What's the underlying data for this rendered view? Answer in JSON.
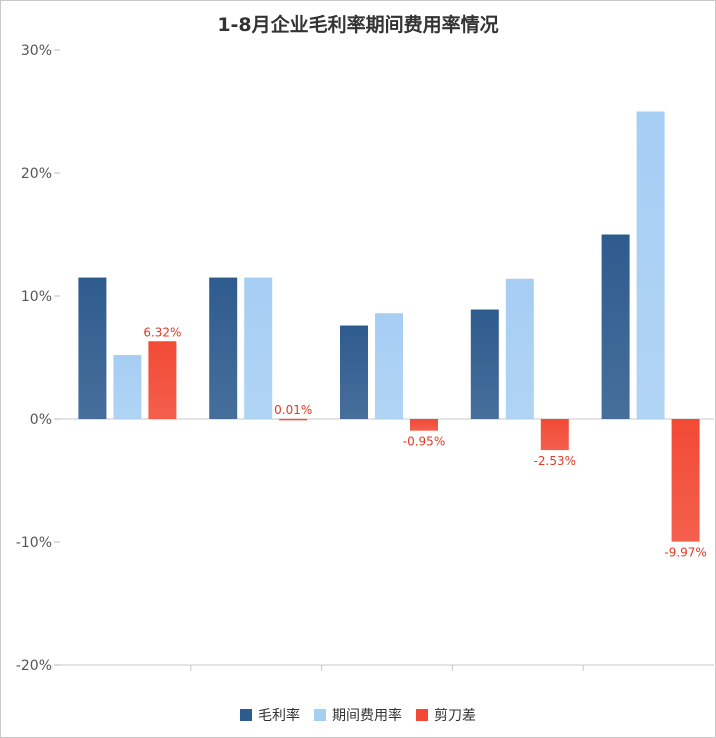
{
  "chart_data": {
    "type": "bar",
    "title": "1-8月企业毛利率期间费用率情况",
    "categories": [
      "",
      "",
      "",
      "",
      ""
    ],
    "series": [
      {
        "name": "毛利率",
        "values": [
          11.5,
          11.5,
          7.6,
          8.9,
          15.0
        ],
        "color": "#2e5b8e",
        "labels": [
          "",
          "",
          "",
          "",
          ""
        ]
      },
      {
        "name": "期间费用率",
        "values": [
          5.2,
          11.5,
          8.6,
          11.4,
          25.0
        ],
        "color": "#a6cef3",
        "labels": [
          "",
          "",
          "",
          "",
          ""
        ]
      },
      {
        "name": "剪刀差",
        "values": [
          6.32,
          0.01,
          -0.95,
          -2.53,
          -9.97
        ],
        "color": "#f24a35",
        "labels": [
          "6.32%",
          "0.01%",
          "-0.95%",
          "-2.53%",
          "-9.97%"
        ]
      }
    ],
    "ylim": [
      -20,
      30
    ],
    "yticks": [
      "-20%",
      "-10%",
      "0%",
      "10%",
      "20%",
      "30%"
    ],
    "ytick_values": [
      -20,
      -10,
      0,
      10,
      20,
      30
    ],
    "xlabel": "",
    "ylabel": "",
    "legend_position": "bottom",
    "grid": false
  }
}
